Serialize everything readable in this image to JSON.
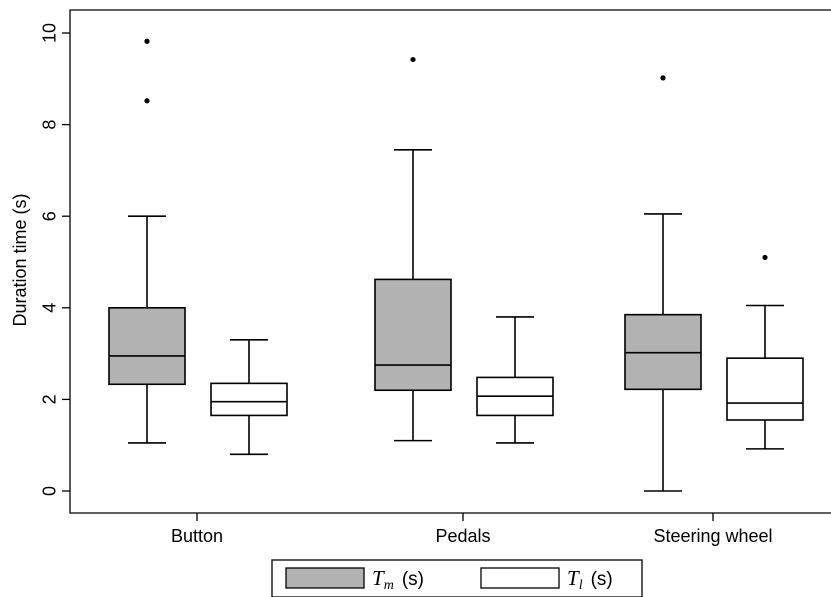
{
  "chart_data": {
    "type": "box",
    "ylabel": "Duration time (s)",
    "ylim": [
      -0.5,
      10.5
    ],
    "yticks": [
      0,
      2,
      4,
      6,
      8,
      10
    ],
    "categories": [
      "Button",
      "Pedals",
      "Steering wheel"
    ],
    "grid": false,
    "legend_position": "bottom",
    "series": [
      {
        "name": "T_m (s)",
        "legend_symbol": "T",
        "legend_subscript": "m",
        "legend_unit": "(s)",
        "color": "#b2b2b2",
        "boxes": [
          {
            "whisker_low": 1.05,
            "q1": 2.33,
            "median": 2.95,
            "q3": 4.0,
            "whisker_high": 6.0,
            "outliers": [
              8.52,
              9.82
            ]
          },
          {
            "whisker_low": 1.1,
            "q1": 2.2,
            "median": 2.75,
            "q3": 4.62,
            "whisker_high": 7.45,
            "outliers": [
              9.42
            ]
          },
          {
            "whisker_low": 0.0,
            "q1": 2.22,
            "median": 3.02,
            "q3": 3.85,
            "whisker_high": 6.05,
            "outliers": [
              9.02
            ]
          }
        ]
      },
      {
        "name": "T_l (s)",
        "legend_symbol": "T",
        "legend_subscript": "l",
        "legend_unit": "(s)",
        "color": "#ffffff",
        "boxes": [
          {
            "whisker_low": 0.8,
            "q1": 1.65,
            "median": 1.95,
            "q3": 2.35,
            "whisker_high": 3.3,
            "outliers": []
          },
          {
            "whisker_low": 1.05,
            "q1": 1.65,
            "median": 2.07,
            "q3": 2.48,
            "whisker_high": 3.8,
            "outliers": []
          },
          {
            "whisker_low": 0.92,
            "q1": 1.55,
            "median": 1.92,
            "q3": 2.9,
            "whisker_high": 4.05,
            "outliers": [
              5.1
            ]
          }
        ]
      }
    ]
  }
}
